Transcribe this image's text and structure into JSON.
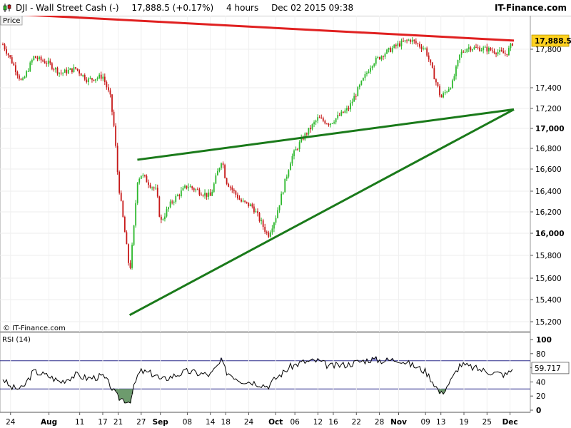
{
  "header": {
    "symbol": "DJI - Wall Street Cash (-)",
    "price": "17,888.5 (+0.17%)",
    "timeframe": "4 hours",
    "datetime": "Dec 02 2015 09:38",
    "brand": "IT-Finance.com",
    "icon": "candlestick-chart-icon"
  },
  "price_panel": {
    "label": "Price",
    "watermark": "© IT-Finance.com",
    "last_value_label": "17,888.5",
    "y_ticks": [
      "17,800",
      "17,400",
      "17,200",
      "17,000",
      "16,800",
      "16,600",
      "16,400",
      "16,200",
      "16,000",
      "15,800",
      "15,600",
      "15,400",
      "15,200"
    ],
    "bold_ticks": [
      "17,000",
      "16,000"
    ]
  },
  "rsi_panel": {
    "label": "RSI (14)",
    "last_value_label": "59.717",
    "y_ticks": [
      "100",
      "80",
      "60",
      "40",
      "20",
      "0"
    ]
  },
  "x_axis": {
    "labels": [
      "24",
      "Aug",
      "11",
      "17",
      "21",
      "27",
      "Sep",
      "08",
      "14",
      "18",
      "24",
      "Oct",
      "06",
      "12",
      "16",
      "22",
      "28",
      "Nov",
      "09",
      "13",
      "19",
      "25",
      "Dec"
    ],
    "month_labels": [
      "Aug",
      "Sep",
      "Oct",
      "Nov",
      "Dec"
    ]
  },
  "colors": {
    "up": "#2db82d",
    "down": "#c71919",
    "resistance_line": "#e02020",
    "support_lines": "#1a7a1a",
    "last_price_bg": "#ffd21f",
    "rsi_line": "#000000",
    "rsi_fill": "#6d9b6d",
    "rsi_bands": "#2a2a8a"
  },
  "chart_data": [
    {
      "type": "candlestick",
      "title": "DJI - Wall Street Cash (-)",
      "timeframe": "4 hours",
      "ylim": [
        15100,
        18100
      ],
      "last": 17888.5,
      "trendlines": [
        {
          "name": "resistance",
          "color": "red",
          "from": {
            "x": "Jul 22",
            "y": 18170
          },
          "to": {
            "x": "Dec 02",
            "y": 17890
          }
        },
        {
          "name": "support-upper",
          "color": "green",
          "from": {
            "x": "Aug 26",
            "y": 16690
          },
          "to": {
            "x": "Dec 02",
            "y": 17190
          }
        },
        {
          "name": "support-lower",
          "color": "green",
          "from": {
            "x": "Aug 24",
            "y": 15260
          },
          "to": {
            "x": "Dec 02",
            "y": 17190
          }
        }
      ],
      "close_path": [
        [
          "Jul 22",
          17850
        ],
        [
          "Jul 24",
          17700
        ],
        [
          "Jul 27",
          17450
        ],
        [
          "Jul 30",
          17720
        ],
        [
          "Aug 03",
          17650
        ],
        [
          "Aug 06",
          17550
        ],
        [
          "Aug 10",
          17600
        ],
        [
          "Aug 13",
          17480
        ],
        [
          "Aug 17",
          17520
        ],
        [
          "Aug 19",
          17300
        ],
        [
          "Aug 20",
          16990
        ],
        [
          "Aug 21",
          16500
        ],
        [
          "Aug 24",
          15650
        ],
        [
          "Aug 25",
          16000
        ],
        [
          "Aug 26",
          16500
        ],
        [
          "Aug 27",
          16550
        ],
        [
          "Aug 31",
          16400
        ],
        [
          "Sep 01",
          16100
        ],
        [
          "Sep 04",
          16300
        ],
        [
          "Sep 08",
          16450
        ],
        [
          "Sep 11",
          16400
        ],
        [
          "Sep 14",
          16350
        ],
        [
          "Sep 17",
          16700
        ],
        [
          "Sep 18",
          16500
        ],
        [
          "Sep 22",
          16300
        ],
        [
          "Sep 25",
          16250
        ],
        [
          "Sep 29",
          15980
        ],
        [
          "Oct 01",
          16150
        ],
        [
          "Oct 05",
          16700
        ],
        [
          "Oct 08",
          16900
        ],
        [
          "Oct 12",
          17100
        ],
        [
          "Oct 15",
          17050
        ],
        [
          "Oct 20",
          17200
        ],
        [
          "Oct 22",
          17350
        ],
        [
          "Oct 26",
          17650
        ],
        [
          "Oct 29",
          17750
        ],
        [
          "Nov 02",
          17850
        ],
        [
          "Nov 05",
          17900
        ],
        [
          "Nov 09",
          17800
        ],
        [
          "Nov 11",
          17550
        ],
        [
          "Nov 13",
          17300
        ],
        [
          "Nov 16",
          17450
        ],
        [
          "Nov 18",
          17750
        ],
        [
          "Nov 20",
          17820
        ],
        [
          "Nov 25",
          17800
        ],
        [
          "Nov 30",
          17750
        ],
        [
          "Dec 02",
          17888.5
        ]
      ]
    },
    {
      "type": "line",
      "title": "RSI (14)",
      "ylim": [
        0,
        100
      ],
      "bands": [
        30,
        70
      ],
      "last": 59.717,
      "values_by_date": [
        [
          "Jul 22",
          45
        ],
        [
          "Jul 24",
          32
        ],
        [
          "Jul 27",
          30
        ],
        [
          "Jul 30",
          55
        ],
        [
          "Aug 03",
          48
        ],
        [
          "Aug 06",
          40
        ],
        [
          "Aug 10",
          50
        ],
        [
          "Aug 13",
          45
        ],
        [
          "Aug 17",
          48
        ],
        [
          "Aug 19",
          35
        ],
        [
          "Aug 20",
          25
        ],
        [
          "Aug 21",
          18
        ],
        [
          "Aug 24",
          12
        ],
        [
          "Aug 25",
          30
        ],
        [
          "Aug 26",
          48
        ],
        [
          "Aug 27",
          55
        ],
        [
          "Aug 31",
          50
        ],
        [
          "Sep 01",
          42
        ],
        [
          "Sep 04",
          48
        ],
        [
          "Sep 08",
          55
        ],
        [
          "Sep 11",
          52
        ],
        [
          "Sep 14",
          50
        ],
        [
          "Sep 17",
          70
        ],
        [
          "Sep 18",
          55
        ],
        [
          "Sep 22",
          42
        ],
        [
          "Sep 25",
          40
        ],
        [
          "Sep 29",
          34
        ],
        [
          "Oct 01",
          45
        ],
        [
          "Oct 05",
          62
        ],
        [
          "Oct 08",
          68
        ],
        [
          "Oct 12",
          70
        ],
        [
          "Oct 15",
          62
        ],
        [
          "Oct 20",
          65
        ],
        [
          "Oct 22",
          68
        ],
        [
          "Oct 26",
          72
        ],
        [
          "Oct 29",
          70
        ],
        [
          "Nov 02",
          72
        ],
        [
          "Nov 05",
          65
        ],
        [
          "Nov 09",
          55
        ],
        [
          "Nov 11",
          40
        ],
        [
          "Nov 13",
          22
        ],
        [
          "Nov 16",
          45
        ],
        [
          "Nov 18",
          65
        ],
        [
          "Nov 20",
          62
        ],
        [
          "Nov 25",
          55
        ],
        [
          "Nov 30",
          50
        ],
        [
          "Dec 02",
          59.717
        ]
      ]
    }
  ]
}
